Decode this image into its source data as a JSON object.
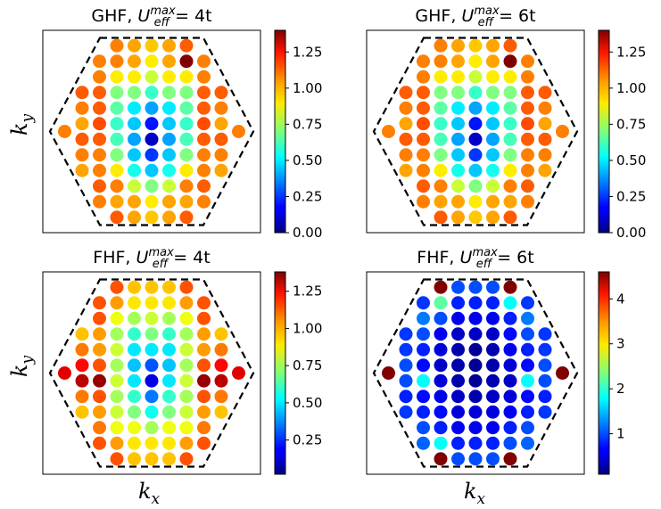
{
  "figure": {
    "ylabel": "k",
    "ylabel_sub": "y",
    "xlabel": "k",
    "xlabel_sub": "x"
  },
  "chart_data": [
    {
      "type": "scatter",
      "title": {
        "prefix": "GHF, ",
        "sym": "U",
        "sub": "eff",
        "sup": "max",
        "rhs": " = 4t"
      },
      "colorbar": {
        "min": 0.0,
        "max": 1.4,
        "colormap": "jet",
        "ticks": [
          "0.00",
          "0.25",
          "0.50",
          "0.75",
          "1.00",
          "1.25"
        ],
        "tick_values": [
          0,
          0.25,
          0.5,
          0.75,
          1.0,
          1.25
        ]
      },
      "columns": [
        {
          "kx": -5,
          "values": [
            1.1,
            1.05,
            1.0,
            1.1,
            1.05,
            1.0
          ]
        },
        {
          "kx": -4,
          "values": [
            1.05,
            1.05,
            1.1,
            1.1,
            1.12,
            1.1,
            1.05,
            1.05,
            1.1,
            1.05
          ]
        },
        {
          "kx": -3,
          "values": [
            1.05,
            1.05,
            0.9,
            0.7,
            0.65,
            0.6,
            0.62,
            0.7,
            0.9,
            1.05,
            1.0,
            1.1
          ]
        },
        {
          "kx": -2,
          "values": [
            1.0,
            1.0,
            0.9,
            0.7,
            0.5,
            0.45,
            0.4,
            0.45,
            0.55,
            0.8,
            1.0,
            1.0
          ]
        },
        {
          "kx": -1,
          "values": [
            0.95,
            0.9,
            0.8,
            0.6,
            0.4,
            0.2,
            0.1,
            0.25,
            0.45,
            0.7,
            0.9,
            0.95
          ]
        },
        {
          "kx": 0,
          "values": [
            1.0,
            1.0,
            0.9,
            0.7,
            0.5,
            0.45,
            0.4,
            0.45,
            0.55,
            0.8,
            1.0,
            1.0
          ]
        },
        {
          "kx": 1,
          "values": [
            1.1,
            1.4,
            0.9,
            0.7,
            0.65,
            0.6,
            0.62,
            0.7,
            0.9,
            1.05,
            1.0,
            1.1
          ]
        },
        {
          "kx": 2,
          "values": [
            1.05,
            1.05,
            1.1,
            1.1,
            1.12,
            1.1,
            1.05,
            1.05,
            1.1,
            1.05
          ]
        },
        {
          "kx": 3,
          "values": [
            1.1,
            1.05,
            1.0,
            1.1,
            1.05,
            1.0
          ]
        },
        {
          "kx": 4,
          "values": [
            1.05
          ]
        },
        {
          "kx": -6,
          "values": [
            1.05
          ]
        }
      ],
      "highlights": [
        {
          "kx": -3,
          "row": 0,
          "v": 1.38
        }
      ]
    },
    {
      "type": "scatter",
      "title": {
        "prefix": "GHF, ",
        "sym": "U",
        "sub": "eff",
        "sup": "max",
        "rhs": " = 6t"
      },
      "colorbar": {
        "min": 0.0,
        "max": 1.4,
        "colormap": "jet",
        "ticks": [
          "0.00",
          "0.25",
          "0.50",
          "0.75",
          "1.00",
          "1.25"
        ],
        "tick_values": [
          0,
          0.25,
          0.5,
          0.75,
          1.0,
          1.25
        ]
      },
      "columns": [
        {
          "kx": -5,
          "values": [
            1.1,
            1.05,
            1.0,
            1.1,
            1.05,
            1.0
          ]
        },
        {
          "kx": -4,
          "values": [
            1.05,
            1.05,
            1.1,
            1.1,
            1.12,
            1.1,
            1.05,
            1.05,
            1.1,
            1.05
          ]
        },
        {
          "kx": -3,
          "values": [
            1.05,
            1.05,
            0.9,
            0.7,
            0.65,
            0.6,
            0.62,
            0.7,
            0.9,
            1.05,
            1.0,
            1.1
          ]
        },
        {
          "kx": -2,
          "values": [
            1.0,
            1.0,
            0.9,
            0.7,
            0.5,
            0.45,
            0.4,
            0.45,
            0.55,
            0.8,
            1.0,
            1.0
          ]
        },
        {
          "kx": -1,
          "values": [
            0.95,
            0.9,
            0.8,
            0.6,
            0.4,
            0.2,
            0.1,
            0.25,
            0.45,
            0.7,
            0.9,
            0.95
          ]
        },
        {
          "kx": 0,
          "values": [
            1.0,
            1.0,
            0.9,
            0.7,
            0.5,
            0.45,
            0.4,
            0.45,
            0.55,
            0.8,
            1.0,
            1.0
          ]
        },
        {
          "kx": 1,
          "values": [
            1.1,
            1.4,
            0.9,
            0.7,
            0.65,
            0.6,
            0.62,
            0.7,
            0.9,
            1.05,
            1.0,
            1.1
          ]
        },
        {
          "kx": 2,
          "values": [
            1.05,
            1.05,
            1.1,
            1.1,
            1.12,
            1.1,
            1.05,
            1.05,
            1.1,
            1.05
          ]
        },
        {
          "kx": 3,
          "values": [
            1.1,
            1.05,
            1.0,
            1.1,
            1.05,
            1.0
          ]
        },
        {
          "kx": 4,
          "values": [
            1.05
          ]
        },
        {
          "kx": -6,
          "values": [
            1.05
          ]
        }
      ],
      "highlights": [
        {
          "kx": -3,
          "row": 0,
          "v": 1.38
        }
      ]
    },
    {
      "type": "scatter",
      "title": {
        "prefix": "FHF, ",
        "sym": "U",
        "sub": "eff",
        "sup": "max",
        "rhs": " = 4t"
      },
      "colorbar": {
        "min": 0.02,
        "max": 1.38,
        "colormap": "jet",
        "ticks": [
          "0.25",
          "0.50",
          "0.75",
          "1.00",
          "1.25"
        ],
        "tick_values": [
          0.25,
          0.5,
          0.75,
          1.0,
          1.25
        ]
      },
      "columns": [
        {
          "kx": -5,
          "values": [
            0.95,
            1.05,
            1.2,
            1.3,
            1.05,
            0.95
          ]
        },
        {
          "kx": -4,
          "values": [
            1.1,
            1.1,
            1.0,
            1.0,
            1.1,
            1.35,
            1.1,
            1.0,
            1.05,
            1.1
          ]
        },
        {
          "kx": -3,
          "values": [
            1.1,
            1.0,
            0.85,
            0.75,
            0.8,
            0.75,
            0.8,
            0.75,
            0.8,
            0.85,
            1.0,
            1.1
          ]
        },
        {
          "kx": -2,
          "values": [
            0.95,
            0.9,
            0.75,
            0.6,
            0.5,
            0.45,
            0.5,
            0.6,
            0.7,
            0.85,
            0.9,
            0.95
          ]
        },
        {
          "kx": -1,
          "values": [
            0.95,
            0.9,
            0.8,
            0.7,
            0.5,
            0.3,
            0.15,
            0.35,
            0.55,
            0.75,
            0.9,
            0.95
          ]
        },
        {
          "kx": 0,
          "values": [
            0.95,
            0.9,
            0.75,
            0.6,
            0.5,
            0.45,
            0.5,
            0.6,
            0.7,
            0.85,
            0.9,
            0.95
          ]
        },
        {
          "kx": 1,
          "values": [
            1.1,
            1.0,
            0.85,
            0.75,
            0.8,
            0.75,
            0.8,
            0.75,
            0.8,
            0.85,
            1.0,
            1.1
          ]
        },
        {
          "kx": 2,
          "values": [
            1.1,
            1.1,
            1.0,
            1.0,
            1.1,
            1.35,
            1.1,
            1.0,
            1.05,
            1.1
          ]
        },
        {
          "kx": 3,
          "values": [
            0.95,
            1.05,
            1.2,
            1.3,
            1.05,
            0.95
          ]
        },
        {
          "kx": 4,
          "values": [
            1.25
          ]
        },
        {
          "kx": -6,
          "values": [
            1.25
          ]
        }
      ],
      "highlights": []
    },
    {
      "type": "scatter",
      "title": {
        "prefix": "FHF, ",
        "sym": "U",
        "sub": "eff",
        "sup": "max",
        "rhs": " = 6t"
      },
      "colorbar": {
        "min": 0.1,
        "max": 4.6,
        "colormap": "jet",
        "ticks": [
          "1",
          "2",
          "3",
          "4"
        ],
        "tick_values": [
          1,
          2,
          3,
          4
        ]
      },
      "columns": [
        {
          "kx": -5,
          "values": [
            0.9,
            0.9,
            1.0,
            1.0,
            0.8,
            0.9
          ]
        },
        {
          "kx": -4,
          "values": [
            0.9,
            1.2,
            1.0,
            0.8,
            0.7,
            1.8,
            0.7,
            0.8,
            1.0,
            1.1
          ]
        },
        {
          "kx": -3,
          "values": [
            4.6,
            2.2,
            1.0,
            0.6,
            0.5,
            0.4,
            0.5,
            0.6,
            0.7,
            0.8,
            1.8,
            4.6
          ]
        },
        {
          "kx": -2,
          "values": [
            1.0,
            0.8,
            0.6,
            0.4,
            0.3,
            0.3,
            0.3,
            0.4,
            0.5,
            0.6,
            0.8,
            1.0
          ]
        },
        {
          "kx": -1,
          "values": [
            1.0,
            0.8,
            0.6,
            0.4,
            0.2,
            0.2,
            0.2,
            0.3,
            0.5,
            0.6,
            0.8,
            1.0
          ]
        },
        {
          "kx": 0,
          "values": [
            1.0,
            0.8,
            0.6,
            0.4,
            0.3,
            0.3,
            0.3,
            0.4,
            0.5,
            0.6,
            0.8,
            1.0
          ]
        },
        {
          "kx": 1,
          "values": [
            4.6,
            1.8,
            0.8,
            0.7,
            0.6,
            0.5,
            0.4,
            0.5,
            0.6,
            0.8,
            1.0,
            4.6
          ]
        },
        {
          "kx": 2,
          "values": [
            0.9,
            1.2,
            1.0,
            0.8,
            0.7,
            1.8,
            0.7,
            0.8,
            1.0,
            1.1
          ]
        },
        {
          "kx": 3,
          "values": [
            0.9,
            0.9,
            1.0,
            1.0,
            0.8,
            0.9
          ]
        },
        {
          "kx": 4,
          "values": [
            4.6
          ]
        },
        {
          "kx": -6,
          "values": [
            4.6
          ]
        }
      ],
      "highlights": []
    }
  ]
}
